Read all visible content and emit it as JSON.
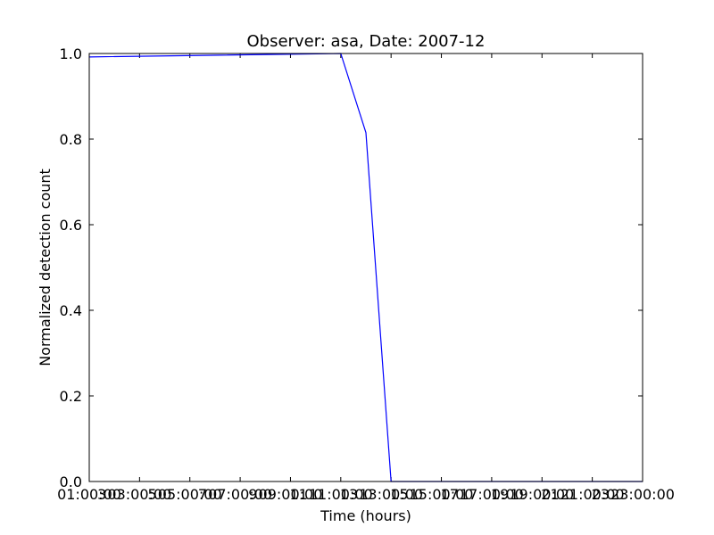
{
  "chart_data": {
    "type": "line",
    "title": "Observer: asa, Date: 2007-12",
    "xlabel": "Time (hours)",
    "ylabel": "Normalized detection count",
    "x_ticks": [
      "01:00:00",
      "03:00:00",
      "05:00:00",
      "07:00:00",
      "09:00:00",
      "11:00:00",
      "13:00:00",
      "15:00:00",
      "17:00:00",
      "19:00:00",
      "21:00:00",
      "23:00:00"
    ],
    "x_tick_overlap_labels": [
      "3",
      "5",
      "7",
      "9",
      "11",
      "13",
      "15",
      "17",
      "19",
      "21",
      "23"
    ],
    "y_ticks": [
      "0.0",
      "0.2",
      "0.4",
      "0.6",
      "0.8",
      "1.0"
    ],
    "xlim": [
      1,
      23
    ],
    "ylim": [
      0,
      1
    ],
    "grid": false,
    "legend": "none",
    "series": [
      {
        "color": "#0000ff",
        "x": [
          1,
          11,
          12,
          13,
          23
        ],
        "y": [
          0.992,
          1.0,
          0.815,
          0.0,
          0.0
        ]
      }
    ]
  }
}
